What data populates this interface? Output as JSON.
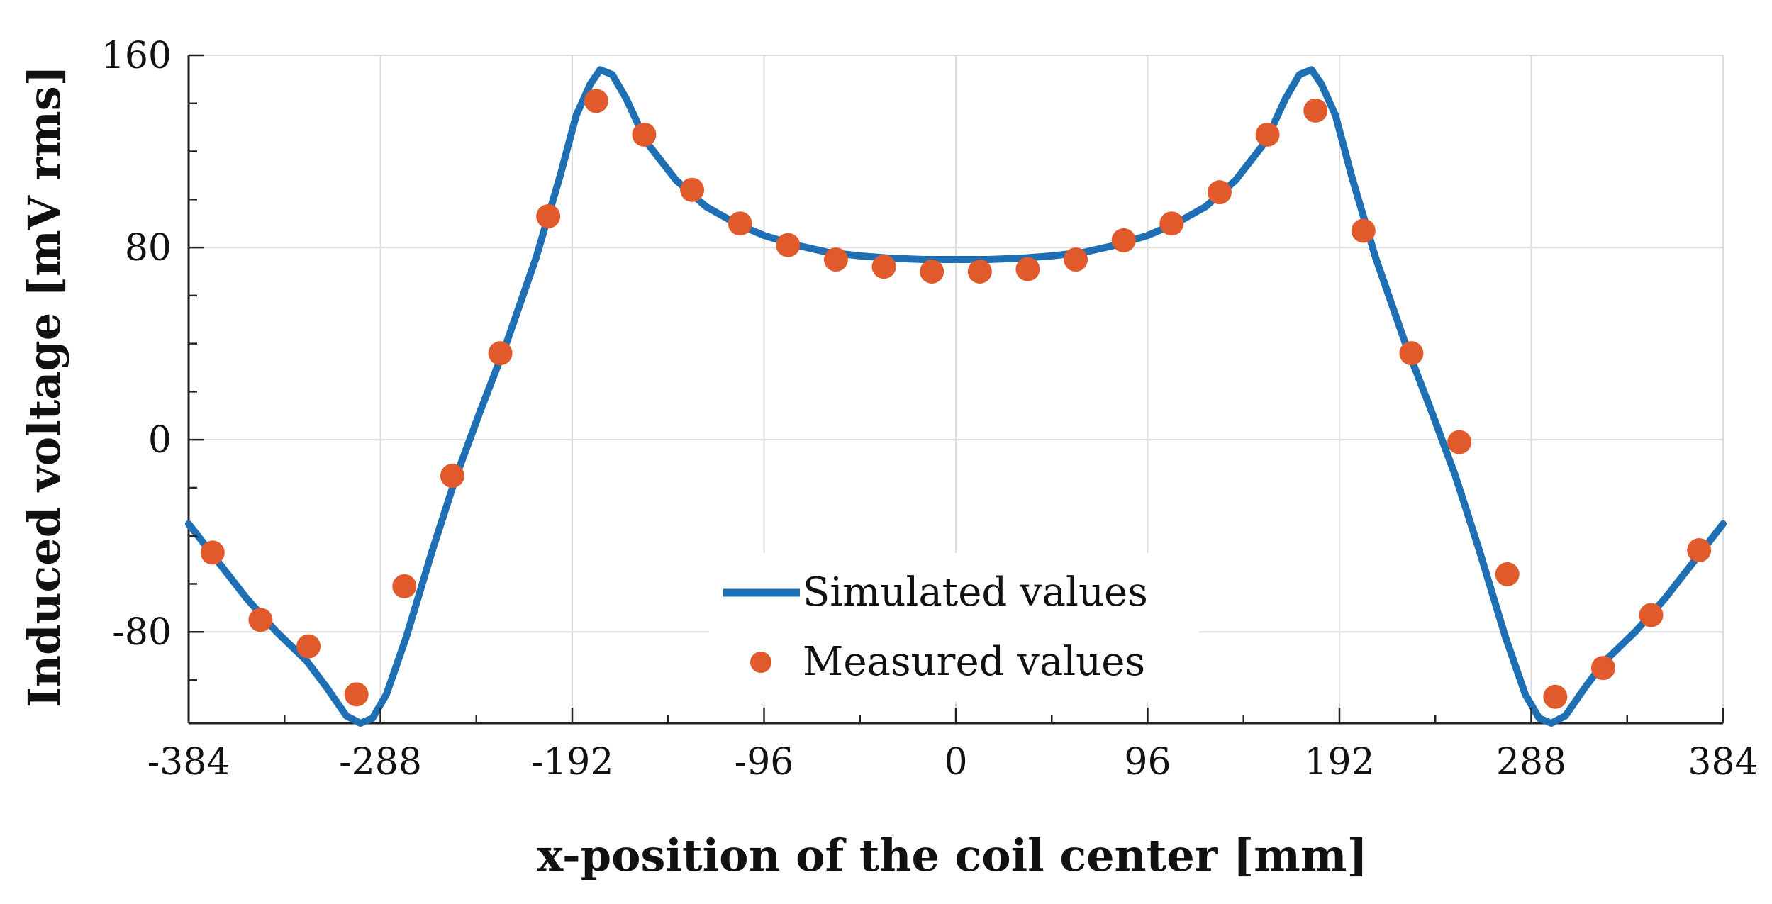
{
  "chart_data": {
    "type": "line",
    "title": "",
    "xlabel": "x-position of the coil center [mm]",
    "ylabel": "Induced voltage [mV rms]",
    "xlim": [
      -384,
      384
    ],
    "ylim": [
      -118,
      160
    ],
    "x_ticks": [
      -384,
      -288,
      -192,
      -96,
      0,
      96,
      192,
      288,
      384
    ],
    "y_ticks": [
      -80,
      0,
      80,
      160
    ],
    "x_tick_labels": [
      "-384",
      "-288",
      "-192",
      "-96",
      "0",
      "96",
      "192",
      "288",
      "384"
    ],
    "y_tick_labels": [
      "-80",
      "0",
      "80",
      "160"
    ],
    "grid": true,
    "legend_position": "bottom-center",
    "series": [
      {
        "name": "Simulated values",
        "style": "line",
        "color": "#1f6fb5",
        "x": [
          -384,
          -370,
          -355,
          -340,
          -325,
          -315,
          -305,
          -298,
          -292,
          -285,
          -275,
          -262,
          -250,
          -238,
          -225,
          -210,
          -198,
          -190,
          -183,
          -178,
          -172,
          -165,
          -155,
          -140,
          -125,
          -110,
          -96,
          -80,
          -64,
          -48,
          -32,
          -16,
          0,
          16,
          32,
          48,
          64,
          80,
          96,
          110,
          125,
          140,
          155,
          165,
          172,
          178,
          183,
          190,
          198,
          210,
          225,
          238,
          250,
          262,
          275,
          285,
          292,
          298,
          305,
          315,
          325,
          340,
          355,
          370,
          384
        ],
        "values": [
          -35,
          -50,
          -66,
          -80,
          -92,
          -103,
          -115,
          -118,
          -116,
          -106,
          -82,
          -46,
          -15,
          12,
          40,
          76,
          110,
          135,
          148,
          154,
          152,
          142,
          124,
          108,
          97,
          90,
          85,
          81,
          78,
          76.5,
          75.5,
          75,
          75,
          75,
          75.5,
          76.5,
          78,
          81,
          85,
          90,
          97,
          108,
          124,
          142,
          152,
          154,
          148,
          135,
          110,
          76,
          40,
          12,
          -15,
          -46,
          -82,
          -106,
          -116,
          -118,
          -115,
          -103,
          -92,
          -80,
          -66,
          -50,
          -35
        ]
      },
      {
        "name": "Measured values",
        "style": "scatter",
        "color": "#e05a2b",
        "x": [
          -372,
          -348,
          -324,
          -300,
          -276,
          -252,
          -228,
          -204,
          -180,
          -156,
          -132,
          -108,
          -84,
          -60,
          -36,
          -12,
          12,
          36,
          60,
          84,
          108,
          132,
          156,
          180,
          204,
          228,
          252,
          276,
          300,
          324,
          348,
          372
        ],
        "values": [
          -47,
          -75,
          -86,
          -106,
          -61,
          -15,
          36,
          93,
          141,
          127,
          104,
          90,
          81,
          75,
          72,
          70,
          70,
          71,
          75,
          83,
          90,
          103,
          127,
          137,
          87,
          36,
          -1,
          -56,
          -107,
          -95,
          -73,
          -46
        ]
      }
    ]
  }
}
